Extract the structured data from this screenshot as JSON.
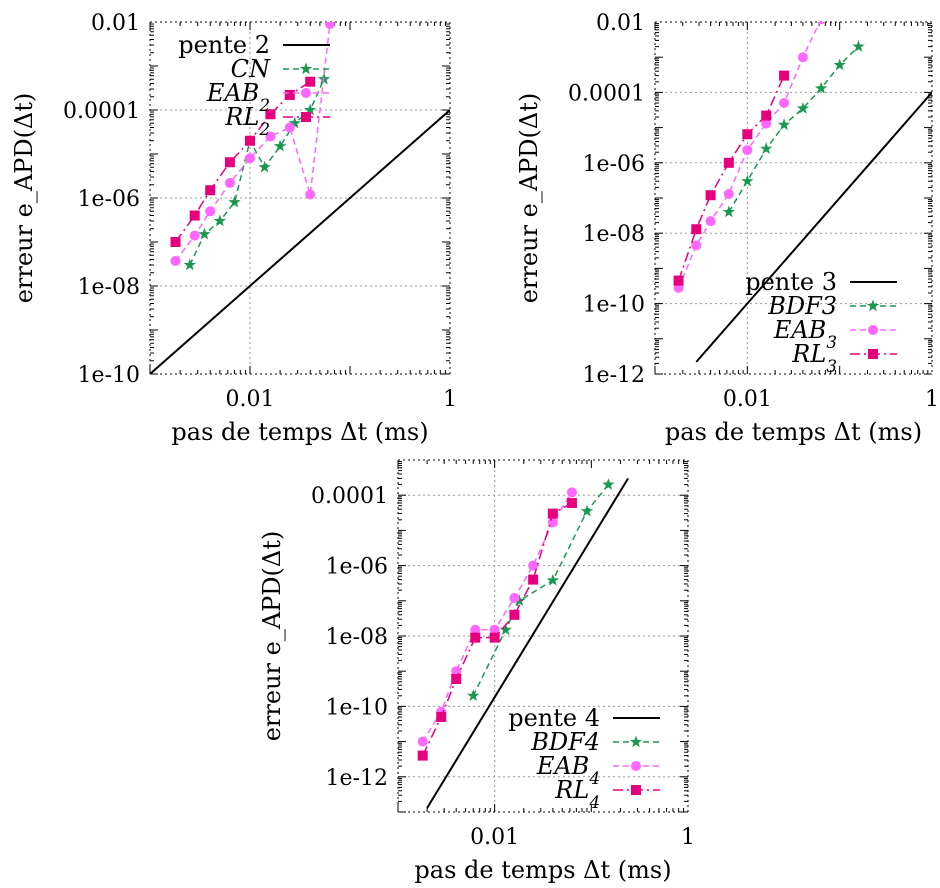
{
  "colors": {
    "slope": "#000000",
    "cn_bdf": "#1a9850",
    "eab": "#ff66ff",
    "rl": "#e6007e",
    "grid": "#9a9a9a"
  },
  "chart_data": [
    {
      "type": "line",
      "xscale": "log",
      "yscale": "log",
      "xlim": [
        0.001,
        1
      ],
      "ylim": [
        1e-10,
        0.01
      ],
      "xticks": [
        {
          "v": 0.01,
          "label": "0.01"
        },
        {
          "v": 1,
          "label": "1"
        }
      ],
      "yticks": [
        {
          "v": 0.01,
          "label": "0.01"
        },
        {
          "v": 0.0001,
          "label": "0.0001"
        },
        {
          "v": 1e-06,
          "label": "1e-06"
        },
        {
          "v": 1e-08,
          "label": "1e-08"
        },
        {
          "v": 1e-10,
          "label": "1e-10"
        }
      ],
      "xlabel": "pas de temps Δt (ms)",
      "ylabel": "erreur e_APD(Δt)",
      "grid": true,
      "legend_position": "top-left",
      "series": [
        {
          "name": "pente 2",
          "style": "solid",
          "marker": "none",
          "color": "#000000",
          "x": [
            0.001,
            1
          ],
          "y": [
            1e-10,
            0.0001
          ]
        },
        {
          "name": "CN",
          "style": "dashed",
          "marker": "star",
          "color": "#1a9850",
          "x": [
            0.0025,
            0.0035,
            0.005,
            0.007,
            0.01,
            0.014,
            0.02,
            0.028,
            0.04,
            0.055
          ],
          "y": [
            3e-08,
            1.5e-07,
            3e-07,
            8e-07,
            2e-05,
            5e-06,
            1.5e-05,
            5e-05,
            0.0001,
            0.0005
          ]
        },
        {
          "name": "EAB_2",
          "style": "dashed",
          "marker": "circle",
          "color": "#ff66ff",
          "x": [
            0.0018,
            0.0028,
            0.004,
            0.0063,
            0.01,
            0.016,
            0.025,
            0.04,
            0.063
          ],
          "y": [
            3.7e-08,
            1.4e-07,
            5e-07,
            2.2e-06,
            8e-06,
            2.5e-05,
            4e-05,
            1.2e-06,
            0.009
          ]
        },
        {
          "name": "RL_2",
          "style": "dashdot",
          "marker": "square",
          "color": "#e6007e",
          "x": [
            0.0018,
            0.0028,
            0.004,
            0.0063,
            0.01,
            0.016,
            0.025,
            0.04
          ],
          "y": [
            1e-07,
            4e-07,
            1.5e-06,
            6.5e-06,
            2e-05,
            8e-05,
            0.00022,
            0.00044
          ]
        }
      ]
    },
    {
      "type": "line",
      "xscale": "log",
      "yscale": "log",
      "xlim": [
        0.001,
        1
      ],
      "ylim": [
        1e-12,
        0.01
      ],
      "xticks": [
        {
          "v": 0.01,
          "label": "0.01"
        },
        {
          "v": 1,
          "label": "1"
        }
      ],
      "yticks": [
        {
          "v": 0.01,
          "label": "0.01"
        },
        {
          "v": 0.0001,
          "label": "0.0001"
        },
        {
          "v": 1e-06,
          "label": "1e-06"
        },
        {
          "v": 1e-08,
          "label": "1e-08"
        },
        {
          "v": 1e-10,
          "label": "1e-10"
        },
        {
          "v": 1e-12,
          "label": "1e-12"
        }
      ],
      "xlabel": "pas de temps Δt (ms)",
      "ylabel": "erreur e_APD(Δt)",
      "grid": true,
      "legend_position": "bottom-right",
      "series": [
        {
          "name": "pente 3",
          "style": "solid",
          "marker": "none",
          "color": "#000000",
          "x": [
            0.0028,
            1
          ],
          "y": [
            2.2e-12,
            0.0001
          ]
        },
        {
          "name": "BDF3",
          "style": "dashed",
          "marker": "star",
          "color": "#1a9850",
          "x": [
            0.0063,
            0.01,
            0.016,
            0.025,
            0.04,
            0.063,
            0.1,
            0.16
          ],
          "y": [
            4e-08,
            3e-07,
            2.5e-06,
            1.2e-05,
            3.5e-05,
            0.00013,
            0.0006,
            0.002
          ]
        },
        {
          "name": "EAB_3",
          "style": "dashed",
          "marker": "circle",
          "color": "#ff66ff",
          "x": [
            0.0018,
            0.0028,
            0.004,
            0.0063,
            0.01,
            0.016,
            0.025,
            0.04,
            0.063,
            0.1
          ],
          "y": [
            2.8e-10,
            4.5e-09,
            2.2e-08,
            1.3e-07,
            2.3e-06,
            1.3e-05,
            5e-05,
            0.001,
            0.012,
            0.03
          ]
        },
        {
          "name": "RL_3",
          "style": "dashdot",
          "marker": "square",
          "color": "#e6007e",
          "x": [
            0.0018,
            0.0028,
            0.004,
            0.0063,
            0.01,
            0.016,
            0.025
          ],
          "y": [
            4.5e-10,
            1.3e-08,
            1.2e-07,
            1e-06,
            6.5e-06,
            2.2e-05,
            0.0003
          ]
        }
      ]
    },
    {
      "type": "line",
      "xscale": "log",
      "yscale": "log",
      "xlim": [
        0.001,
        1
      ],
      "ylim": [
        1e-13,
        0.001
      ],
      "xticks": [
        {
          "v": 0.01,
          "label": "0.01"
        },
        {
          "v": 1,
          "label": "1"
        }
      ],
      "yticks": [
        {
          "v": 0.0001,
          "label": "0.0001"
        },
        {
          "v": 1e-06,
          "label": "1e-06"
        },
        {
          "v": 1e-08,
          "label": "1e-08"
        },
        {
          "v": 1e-10,
          "label": "1e-10"
        },
        {
          "v": 1e-12,
          "label": "1e-12"
        }
      ],
      "xlabel": "pas de temps Δt (ms)",
      "ylabel": "erreur e_APD(Δt)",
      "grid": true,
      "legend_position": "bottom-right",
      "series": [
        {
          "name": "pente 4",
          "style": "solid",
          "marker": "none",
          "color": "#000000",
          "x": [
            0.002,
            0.24
          ],
          "y": [
            1.3e-13,
            0.0003
          ]
        },
        {
          "name": "BDF4",
          "style": "dashed",
          "marker": "star",
          "color": "#1a9850",
          "x": [
            0.006,
            0.013,
            0.018,
            0.04,
            0.09,
            0.15
          ],
          "y": [
            2e-10,
            1.5e-08,
            1e-07,
            3.8e-07,
            3.5e-05,
            0.0002
          ]
        },
        {
          "name": "EAB_4",
          "style": "dashed",
          "marker": "circle",
          "color": "#ff66ff",
          "x": [
            0.0018,
            0.0028,
            0.004,
            0.0063,
            0.01,
            0.016,
            0.025,
            0.04,
            0.063
          ],
          "y": [
            1e-11,
            7e-11,
            1e-09,
            1.5e-08,
            1.5e-08,
            1.2e-07,
            1e-06,
            1.7e-05,
            0.00012
          ]
        },
        {
          "name": "RL_4",
          "style": "dashdot",
          "marker": "square",
          "color": "#e6007e",
          "x": [
            0.0018,
            0.0028,
            0.004,
            0.0063,
            0.01,
            0.016,
            0.025,
            0.04,
            0.063
          ],
          "y": [
            4e-12,
            5e-11,
            6e-10,
            9e-09,
            9e-09,
            4e-08,
            4e-07,
            3e-05,
            6e-05
          ]
        }
      ]
    }
  ]
}
